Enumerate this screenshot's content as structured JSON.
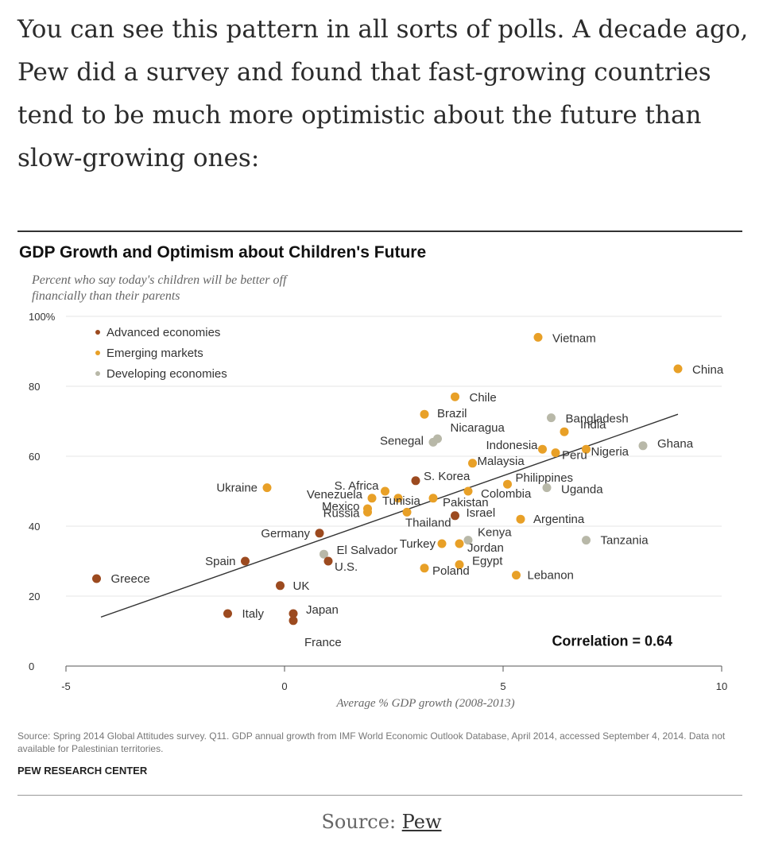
{
  "article": {
    "paragraph": "You can see this pattern in all sorts of polls. A decade ago, Pew did a survey and found that fast-growing countries tend to be much more optimistic about the future than slow-growing ones:"
  },
  "caption": {
    "prefix": "Source: ",
    "link_text": "Pew"
  },
  "colors": {
    "advanced": "#9c4a1f",
    "emerging": "#e8a027",
    "developing": "#b8b8a8",
    "trend": "#333333",
    "grid": "#e5e5e5"
  },
  "chart_data": {
    "type": "scatter",
    "title": "GDP Growth and Optimism about Children's Future",
    "subtitle": "Percent who say today's children will be better off financially than their parents",
    "xlabel": "Average % GDP growth (2008-2013)",
    "xlim": [
      -5,
      10
    ],
    "ylim": [
      0,
      100
    ],
    "x_ticks": [
      {
        "value": -5,
        "label": "-5"
      },
      {
        "value": 0,
        "label": "0"
      },
      {
        "value": 5,
        "label": "5"
      },
      {
        "value": 10,
        "label": "10"
      }
    ],
    "y_ticks": [
      {
        "value": 0,
        "label": "0"
      },
      {
        "value": 20,
        "label": "20"
      },
      {
        "value": 40,
        "label": "40"
      },
      {
        "value": 60,
        "label": "60"
      },
      {
        "value": 80,
        "label": "80"
      },
      {
        "value": 100,
        "label": "100%"
      }
    ],
    "legend": {
      "placement": "top-left",
      "entries": [
        {
          "key": "advanced",
          "label": "Advanced economies"
        },
        {
          "key": "emerging",
          "label": "Emerging markets"
        },
        {
          "key": "developing",
          "label": "Developing economies"
        }
      ]
    },
    "trendline": {
      "x1": -4.2,
      "y1": 14,
      "x2": 9,
      "y2": 72
    },
    "annotation": "Correlation = 0.64",
    "points": [
      {
        "name": "Vietnam",
        "group": "emerging",
        "x": 5.8,
        "y": 94
      },
      {
        "name": "China",
        "group": "emerging",
        "x": 9.0,
        "y": 85
      },
      {
        "name": "Chile",
        "group": "emerging",
        "x": 3.9,
        "y": 77
      },
      {
        "name": "Brazil",
        "group": "emerging",
        "x": 3.2,
        "y": 72
      },
      {
        "name": "Bangladesh",
        "group": "developing",
        "x": 6.1,
        "y": 71
      },
      {
        "name": "India",
        "group": "emerging",
        "x": 6.4,
        "y": 67
      },
      {
        "name": "Nicaragua",
        "group": "developing",
        "x": 3.5,
        "y": 65
      },
      {
        "name": "Senegal",
        "group": "developing",
        "x": 3.4,
        "y": 64
      },
      {
        "name": "Ghana",
        "group": "developing",
        "x": 8.2,
        "y": 63
      },
      {
        "name": "Nigeria",
        "group": "emerging",
        "x": 6.9,
        "y": 62
      },
      {
        "name": "Indonesia",
        "group": "emerging",
        "x": 5.9,
        "y": 62
      },
      {
        "name": "Peru",
        "group": "emerging",
        "x": 6.2,
        "y": 61
      },
      {
        "name": "Malaysia",
        "group": "emerging",
        "x": 4.3,
        "y": 58
      },
      {
        "name": "Philippines",
        "group": "emerging",
        "x": 5.1,
        "y": 52
      },
      {
        "name": "Uganda",
        "group": "developing",
        "x": 6.0,
        "y": 51
      },
      {
        "name": "S. Korea",
        "group": "advanced",
        "x": 3.0,
        "y": 53
      },
      {
        "name": "Ukraine",
        "group": "emerging",
        "x": -0.4,
        "y": 51
      },
      {
        "name": "S. Africa",
        "group": "emerging",
        "x": 2.3,
        "y": 50
      },
      {
        "name": "Colombia",
        "group": "emerging",
        "x": 4.2,
        "y": 50
      },
      {
        "name": "Venezuela",
        "group": "emerging",
        "x": 2.0,
        "y": 48
      },
      {
        "name": "Tunisia",
        "group": "emerging",
        "x": 2.6,
        "y": 48
      },
      {
        "name": "Pakistan",
        "group": "emerging",
        "x": 3.4,
        "y": 48
      },
      {
        "name": "Mexico",
        "group": "emerging",
        "x": 1.9,
        "y": 45
      },
      {
        "name": "Russia",
        "group": "emerging",
        "x": 1.9,
        "y": 44
      },
      {
        "name": "Thailand",
        "group": "emerging",
        "x": 2.8,
        "y": 44
      },
      {
        "name": "Israel",
        "group": "advanced",
        "x": 3.9,
        "y": 43
      },
      {
        "name": "Argentina",
        "group": "emerging",
        "x": 5.4,
        "y": 42
      },
      {
        "name": "Germany",
        "group": "advanced",
        "x": 0.8,
        "y": 38
      },
      {
        "name": "Tanzania",
        "group": "developing",
        "x": 6.9,
        "y": 36
      },
      {
        "name": "Kenya",
        "group": "developing",
        "x": 4.2,
        "y": 36
      },
      {
        "name": "Jordan",
        "group": "emerging",
        "x": 4.0,
        "y": 35
      },
      {
        "name": "Turkey",
        "group": "emerging",
        "x": 3.6,
        "y": 35
      },
      {
        "name": "El Salvador",
        "group": "developing",
        "x": 0.9,
        "y": 32
      },
      {
        "name": "U.S.",
        "group": "advanced",
        "x": 1.0,
        "y": 30
      },
      {
        "name": "Spain",
        "group": "advanced",
        "x": -0.9,
        "y": 30
      },
      {
        "name": "Egypt",
        "group": "emerging",
        "x": 4.0,
        "y": 29
      },
      {
        "name": "Poland",
        "group": "emerging",
        "x": 3.2,
        "y": 28
      },
      {
        "name": "Lebanon",
        "group": "emerging",
        "x": 5.3,
        "y": 26
      },
      {
        "name": "Greece",
        "group": "advanced",
        "x": -4.3,
        "y": 25
      },
      {
        "name": "UK",
        "group": "advanced",
        "x": -0.1,
        "y": 23
      },
      {
        "name": "Italy",
        "group": "advanced",
        "x": -1.3,
        "y": 15
      },
      {
        "name": "Japan",
        "group": "advanced",
        "x": 0.2,
        "y": 15
      },
      {
        "name": "France",
        "group": "advanced",
        "x": 0.2,
        "y": 13
      }
    ],
    "source": "Source: Spring 2014 Global Attitudes survey. Q11. GDP annual growth from IMF World Economic Outlook Database, April 2014, accessed September 4, 2014. Data not available for Palestinian territories.",
    "organization": "PEW RESEARCH CENTER"
  }
}
